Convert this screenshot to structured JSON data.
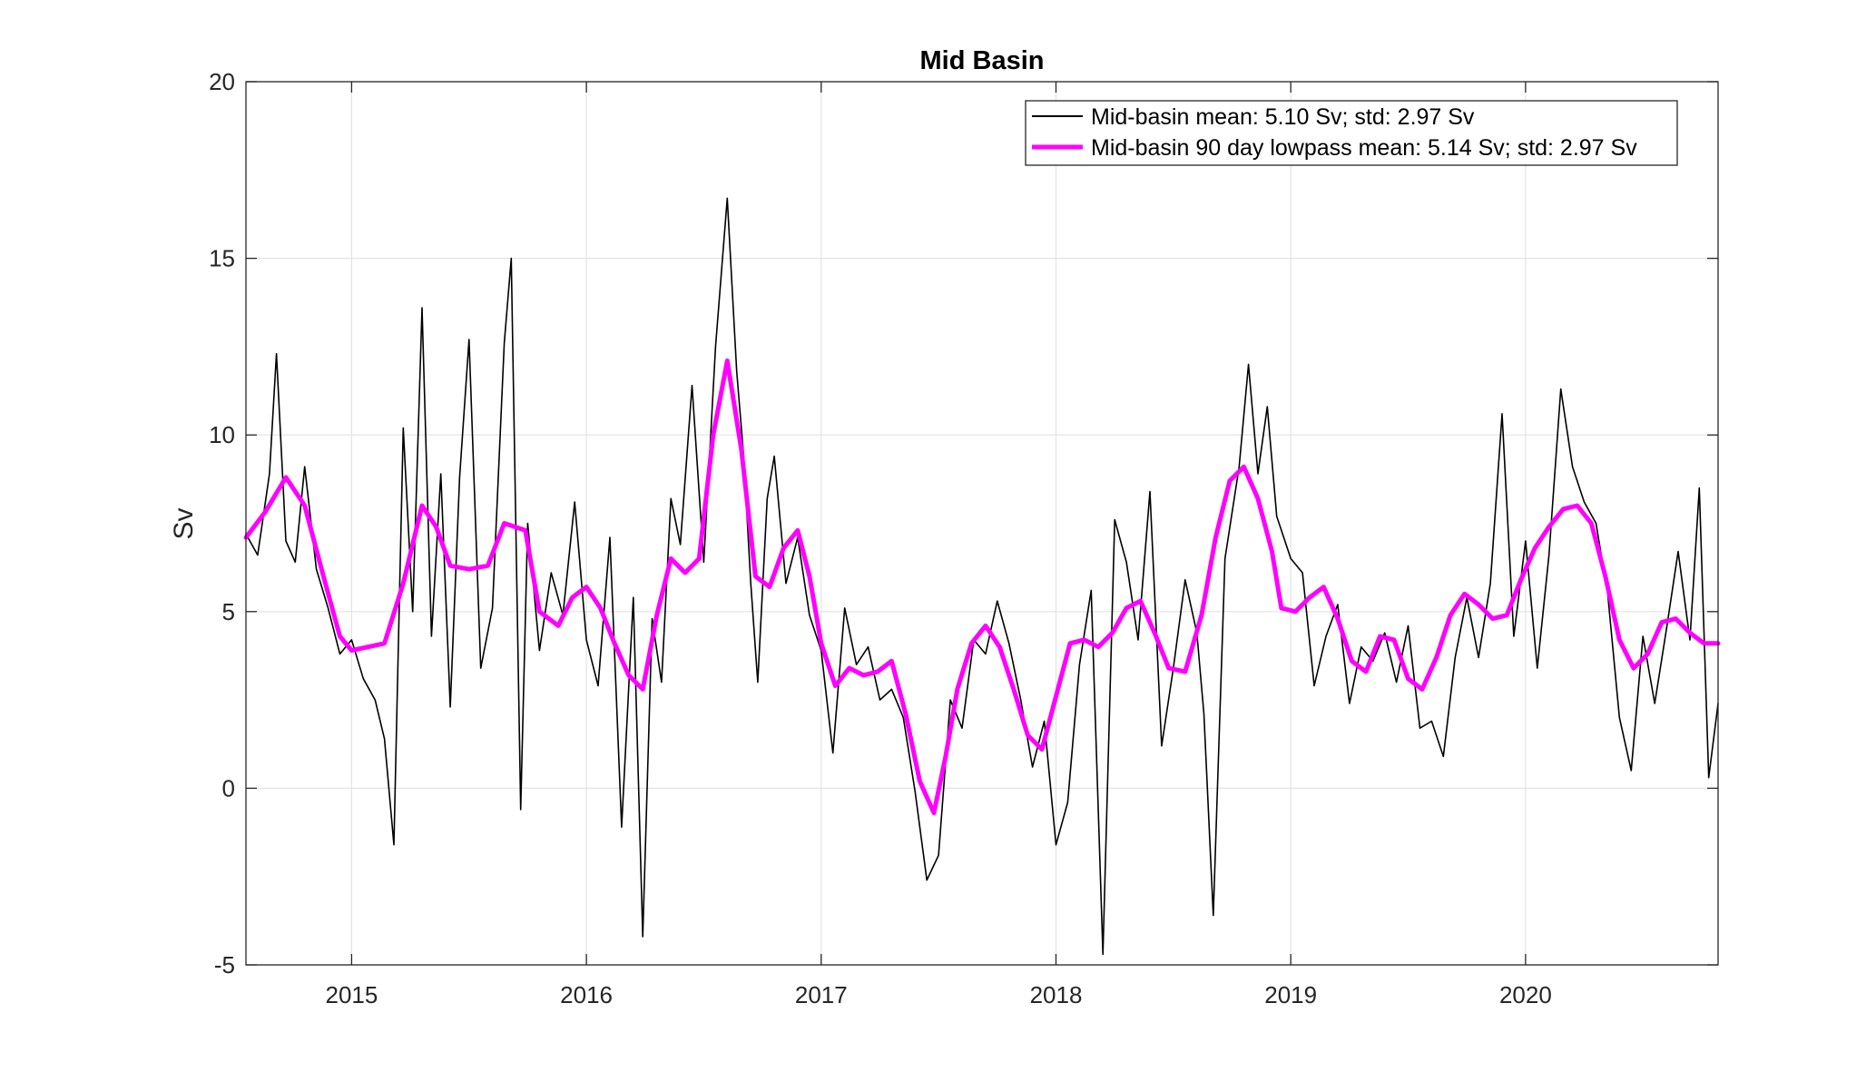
{
  "chart_data": {
    "type": "line",
    "title": "Mid Basin",
    "xlabel": "",
    "ylabel": "Sv",
    "xlim": [
      2014.55,
      2020.82
    ],
    "ylim": [
      -5,
      20
    ],
    "x_ticks": [
      2015,
      2016,
      2017,
      2018,
      2019,
      2020
    ],
    "x_tick_labels": [
      "2015",
      "2016",
      "2017",
      "2018",
      "2019",
      "2020"
    ],
    "y_ticks": [
      -5,
      0,
      5,
      10,
      15,
      20
    ],
    "y_tick_labels": [
      "-5",
      "0",
      "5",
      "10",
      "15",
      "20"
    ],
    "grid": true,
    "legend_position": "top-right",
    "series": [
      {
        "name": "Mid-basin mean: 5.10 Sv; std: 2.97 Sv",
        "color": "#000000",
        "style": "thin",
        "x": [
          2014.55,
          2014.6,
          2014.65,
          2014.68,
          2014.72,
          2014.76,
          2014.8,
          2014.85,
          2014.9,
          2014.95,
          2015.0,
          2015.05,
          2015.1,
          2015.14,
          2015.18,
          2015.22,
          2015.26,
          2015.3,
          2015.34,
          2015.38,
          2015.42,
          2015.46,
          2015.5,
          2015.55,
          2015.6,
          2015.65,
          2015.68,
          2015.72,
          2015.75,
          2015.8,
          2015.85,
          2015.9,
          2015.95,
          2016.0,
          2016.05,
          2016.1,
          2016.15,
          2016.2,
          2016.24,
          2016.28,
          2016.32,
          2016.36,
          2016.4,
          2016.45,
          2016.5,
          2016.55,
          2016.6,
          2016.64,
          2016.67,
          2016.7,
          2016.73,
          2016.77,
          2016.8,
          2016.85,
          2016.9,
          2016.95,
          2017.0,
          2017.05,
          2017.1,
          2017.15,
          2017.2,
          2017.25,
          2017.3,
          2017.35,
          2017.4,
          2017.45,
          2017.5,
          2017.55,
          2017.6,
          2017.65,
          2017.7,
          2017.75,
          2017.8,
          2017.85,
          2017.9,
          2017.95,
          2018.0,
          2018.05,
          2018.1,
          2018.15,
          2018.2,
          2018.25,
          2018.3,
          2018.35,
          2018.4,
          2018.45,
          2018.5,
          2018.55,
          2018.6,
          2018.63,
          2018.67,
          2018.72,
          2018.78,
          2018.82,
          2018.86,
          2018.9,
          2018.94,
          2019.0,
          2019.05,
          2019.1,
          2019.15,
          2019.2,
          2019.25,
          2019.3,
          2019.35,
          2019.4,
          2019.45,
          2019.5,
          2019.55,
          2019.6,
          2019.65,
          2019.7,
          2019.75,
          2019.8,
          2019.85,
          2019.9,
          2019.95,
          2020.0,
          2020.05,
          2020.1,
          2020.15,
          2020.2,
          2020.25,
          2020.3,
          2020.35,
          2020.4,
          2020.45,
          2020.5,
          2020.55,
          2020.6,
          2020.65,
          2020.7,
          2020.74,
          2020.78,
          2020.82
        ],
        "values": [
          7.2,
          6.6,
          8.9,
          12.3,
          7.0,
          6.4,
          9.1,
          6.2,
          5.1,
          3.8,
          4.2,
          3.1,
          2.5,
          1.4,
          -1.6,
          10.2,
          5.0,
          13.6,
          4.3,
          8.9,
          2.3,
          8.8,
          12.7,
          3.4,
          5.1,
          12.6,
          15.0,
          -0.6,
          7.5,
          3.9,
          6.1,
          4.9,
          8.1,
          4.2,
          2.9,
          7.1,
          -1.1,
          5.4,
          -4.2,
          4.8,
          3.0,
          8.2,
          6.9,
          11.4,
          6.4,
          12.5,
          16.7,
          11.8,
          9.4,
          5.8,
          3.0,
          8.2,
          9.4,
          5.8,
          7.1,
          4.9,
          3.9,
          1.0,
          5.1,
          3.5,
          4.0,
          2.5,
          2.8,
          2.0,
          -0.1,
          -2.6,
          -1.9,
          2.5,
          1.7,
          4.2,
          3.8,
          5.3,
          4.1,
          2.5,
          0.6,
          1.9,
          -1.6,
          -0.4,
          3.5,
          5.6,
          -4.7,
          7.6,
          6.4,
          4.2,
          8.4,
          1.2,
          3.4,
          5.9,
          4.4,
          2.1,
          -3.6,
          6.5,
          9.1,
          12.0,
          8.9,
          10.8,
          7.7,
          6.5,
          6.1,
          2.9,
          4.3,
          5.2,
          2.4,
          4.0,
          3.6,
          4.4,
          3.0,
          4.6,
          1.7,
          1.9,
          0.9,
          3.7,
          5.4,
          3.7,
          5.8,
          10.6,
          4.3,
          7.0,
          3.4,
          6.6,
          11.3,
          9.1,
          8.1,
          7.5,
          5.5,
          2.0,
          0.5,
          4.3,
          2.4,
          4.5,
          6.7,
          4.2,
          8.5,
          0.3,
          2.4
        ]
      },
      {
        "name": "Mid-basin 90 day lowpass mean: 5.14 Sv; std: 2.97 Sv",
        "color": "#ff00ff",
        "style": "thick",
        "x": [
          2014.55,
          2014.63,
          2014.72,
          2014.8,
          2014.88,
          2014.95,
          2015.0,
          2015.07,
          2015.14,
          2015.22,
          2015.3,
          2015.36,
          2015.42,
          2015.5,
          2015.58,
          2015.65,
          2015.74,
          2015.8,
          2015.88,
          2015.94,
          2016.0,
          2016.06,
          2016.12,
          2016.18,
          2016.24,
          2016.3,
          2016.36,
          2016.42,
          2016.48,
          2016.54,
          2016.6,
          2016.66,
          2016.72,
          2016.78,
          2016.84,
          2016.9,
          2016.95,
          2017.0,
          2017.06,
          2017.12,
          2017.18,
          2017.24,
          2017.3,
          2017.36,
          2017.42,
          2017.48,
          2017.53,
          2017.58,
          2017.64,
          2017.7,
          2017.76,
          2017.82,
          2017.88,
          2017.94,
          2018.0,
          2018.06,
          2018.12,
          2018.18,
          2018.24,
          2018.3,
          2018.36,
          2018.42,
          2018.48,
          2018.55,
          2018.62,
          2018.68,
          2018.74,
          2018.8,
          2018.86,
          2018.92,
          2018.96,
          2019.02,
          2019.08,
          2019.14,
          2019.2,
          2019.26,
          2019.32,
          2019.38,
          2019.44,
          2019.5,
          2019.56,
          2019.62,
          2019.68,
          2019.74,
          2019.8,
          2019.86,
          2019.92,
          2019.98,
          2020.04,
          2020.1,
          2020.16,
          2020.22,
          2020.28,
          2020.34,
          2020.4,
          2020.46,
          2020.52,
          2020.58,
          2020.64,
          2020.7,
          2020.76,
          2020.82
        ],
        "values": [
          7.1,
          7.8,
          8.8,
          8.0,
          6.0,
          4.3,
          3.9,
          4.0,
          4.1,
          5.8,
          8.0,
          7.4,
          6.3,
          6.2,
          6.3,
          7.5,
          7.3,
          5.0,
          4.6,
          5.4,
          5.7,
          5.1,
          4.1,
          3.2,
          2.8,
          4.9,
          6.5,
          6.1,
          6.5,
          10.0,
          12.1,
          9.6,
          6.0,
          5.7,
          6.8,
          7.3,
          6.0,
          4.1,
          2.9,
          3.4,
          3.2,
          3.3,
          3.6,
          2.1,
          0.2,
          -0.7,
          0.9,
          2.8,
          4.1,
          4.6,
          4.0,
          2.8,
          1.5,
          1.1,
          2.6,
          4.1,
          4.2,
          4.0,
          4.4,
          5.1,
          5.3,
          4.4,
          3.4,
          3.3,
          4.9,
          7.1,
          8.7,
          9.1,
          8.2,
          6.7,
          5.1,
          5.0,
          5.4,
          5.7,
          4.8,
          3.6,
          3.3,
          4.3,
          4.2,
          3.1,
          2.8,
          3.7,
          4.9,
          5.5,
          5.2,
          4.8,
          4.9,
          5.9,
          6.8,
          7.4,
          7.9,
          8.0,
          7.5,
          6.0,
          4.2,
          3.4,
          3.8,
          4.7,
          4.8,
          4.4,
          4.1,
          4.1
        ]
      }
    ]
  }
}
